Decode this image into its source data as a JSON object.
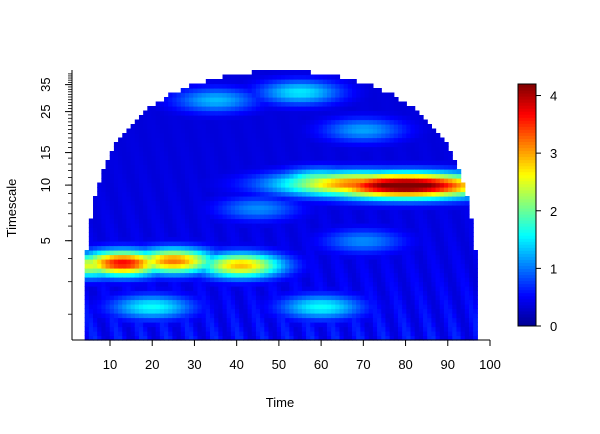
{
  "chart_data": {
    "type": "heatmap",
    "title": "",
    "xlabel": "Time",
    "ylabel": "Timescale",
    "x_ticks": [
      10,
      20,
      30,
      40,
      50,
      60,
      70,
      80,
      90,
      100
    ],
    "y_ticks": [
      5,
      10,
      15,
      25,
      35
    ],
    "y_scale": "log",
    "xlim": [
      1,
      100
    ],
    "ylim": [
      1.45,
      42
    ],
    "colorbar": {
      "ticks": [
        0,
        1,
        2,
        3,
        4
      ],
      "range": [
        0,
        4.2
      ],
      "colormap": [
        "#00008f",
        "#0000ff",
        "#0080ff",
        "#00ffff",
        "#80ff80",
        "#ffff00",
        "#ff8000",
        "#ff0000",
        "#800000"
      ]
    },
    "cone_of_influence": {
      "time_start": 4,
      "time_end": 97,
      "max_timescale": 40
    },
    "features": [
      {
        "time": 80,
        "timescale": 10,
        "value": 4.2,
        "note": "strongest power, dark red"
      },
      {
        "time": 70,
        "timescale": 10.2,
        "value": 3.0
      },
      {
        "time": 60,
        "timescale": 10.5,
        "value": 2.0
      },
      {
        "time": 13,
        "timescale": 3.8,
        "value": 3.4
      },
      {
        "time": 25,
        "timescale": 3.9,
        "value": 2.9
      },
      {
        "time": 41,
        "timescale": 3.7,
        "value": 2.6
      },
      {
        "time": 5,
        "timescale": 3.7,
        "value": 2.2
      },
      {
        "time": 55,
        "timescale": 32,
        "value": 1.2
      },
      {
        "time": 35,
        "timescale": 29,
        "value": 1.0
      },
      {
        "time": 70,
        "timescale": 20,
        "value": 0.9
      },
      {
        "time": 45,
        "timescale": 7.5,
        "value": 0.8
      },
      {
        "time": 70,
        "timescale": 5,
        "value": 0.8
      },
      {
        "time": 20,
        "timescale": 2.2,
        "value": 1.3
      },
      {
        "time": 60,
        "timescale": 2.2,
        "value": 1.3
      }
    ]
  }
}
